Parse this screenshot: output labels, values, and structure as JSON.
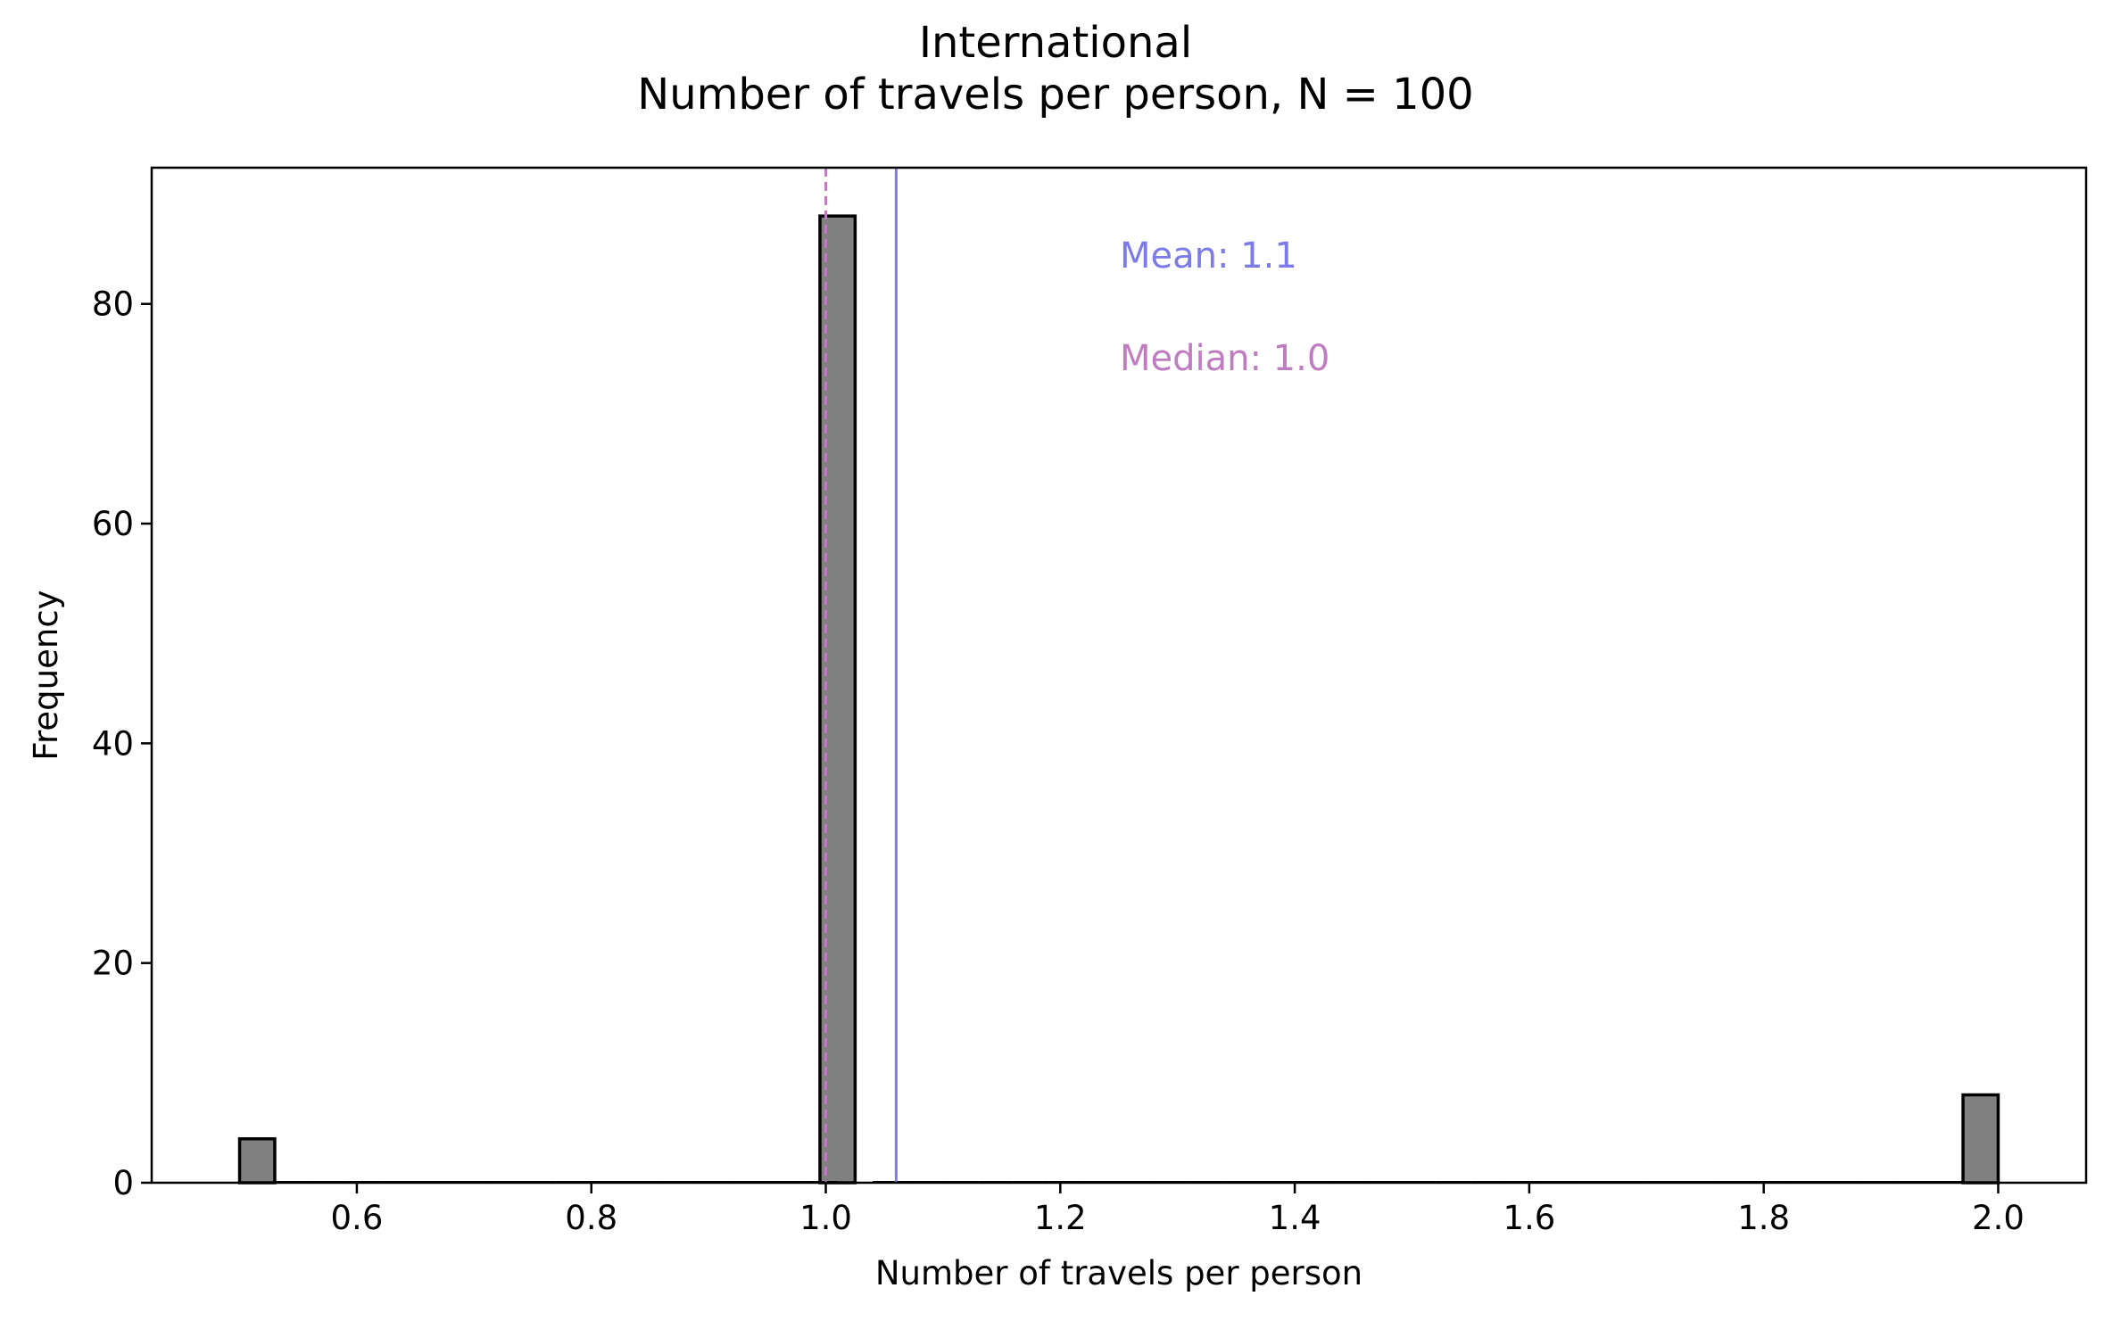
{
  "chart_data": {
    "type": "bar",
    "title": "International",
    "subtitle": "Number of travels per person, N = 100",
    "xlabel": "Number of travels per person",
    "ylabel": "Frequency",
    "xlim": [
      0.425,
      2.075
    ],
    "ylim": [
      0,
      92.4
    ],
    "xticks": [
      "0.6",
      "0.8",
      "1.0",
      "1.2",
      "1.4",
      "1.6",
      "1.8",
      "2.0"
    ],
    "yticks": [
      "0",
      "20",
      "40",
      "60",
      "80"
    ],
    "bin_width": 0.03,
    "bins": [
      {
        "x": 0.515,
        "value": 4
      },
      {
        "x": 1.01,
        "value": 88
      },
      {
        "x": 1.985,
        "value": 8
      }
    ],
    "mean": 1.06,
    "median": 1.0,
    "mean_label": "Mean: 1.1",
    "median_label": "Median: 1.0",
    "colors": {
      "bar_fill": "#808080",
      "bar_edge": "#000000",
      "mean_line": "#7b7bea",
      "median_line": "#c07cc0"
    },
    "grid": false,
    "legend": "none"
  }
}
